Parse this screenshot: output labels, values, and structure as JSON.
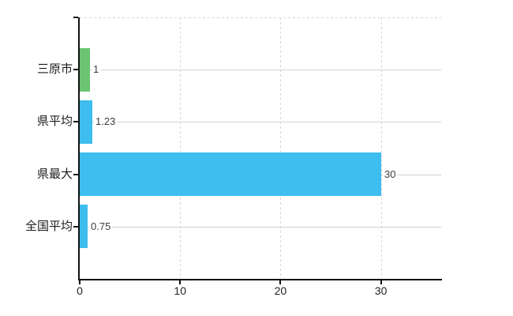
{
  "chart_data": {
    "type": "bar",
    "orientation": "horizontal",
    "title": "",
    "xlabel": "",
    "ylabel": "",
    "categories": [
      "三原市",
      "県平均",
      "県最大",
      "全国平均"
    ],
    "series": [
      {
        "name": "values",
        "values": [
          1,
          1.23,
          30,
          0.75
        ]
      }
    ],
    "value_labels": [
      "1",
      "1.23",
      "30",
      "0.75"
    ],
    "bar_colors": [
      "#6CC472",
      "#3EBDEF",
      "#3EBDEF",
      "#3EBDEF"
    ],
    "x_ticks": [
      0,
      10,
      20,
      30
    ],
    "x_tick_labels": [
      "0",
      "10",
      "20",
      "30"
    ],
    "xlim": [
      0,
      36
    ],
    "grid": true,
    "legend_position": "none",
    "colors": {
      "bar_default": "#3EBDEF",
      "bar_highlight": "#6CC472",
      "grid_solid": "#cdd6cd",
      "grid_dashed": "#d9d3d9",
      "axis": "#111111",
      "background": "#ffffff"
    }
  }
}
